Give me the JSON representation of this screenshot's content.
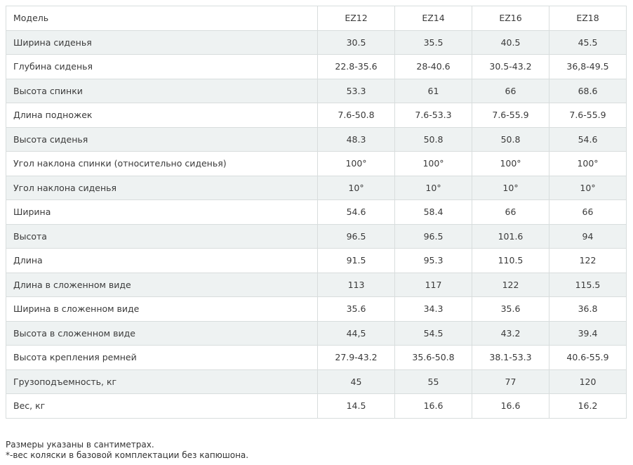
{
  "table": {
    "header": [
      "Модель",
      "EZ12",
      "EZ14",
      "EZ16",
      "EZ18"
    ],
    "rows": [
      [
        "Ширина сиденья",
        "30.5",
        "35.5",
        "40.5",
        "45.5"
      ],
      [
        "Глубина сиденья",
        "22.8-35.6",
        "28-40.6",
        "30.5-43.2",
        "36,8-49.5"
      ],
      [
        "Высота спинки",
        "53.3",
        "61",
        "66",
        "68.6"
      ],
      [
        "Длина подножек",
        "7.6-50.8",
        "7.6-53.3",
        "7.6-55.9",
        "7.6-55.9"
      ],
      [
        "Высота сиденья",
        "48.3",
        "50.8",
        "50.8",
        "54.6"
      ],
      [
        "Угол наклона спинки (относительно сиденья)",
        "100°",
        "100°",
        "100°",
        "100°"
      ],
      [
        "Угол наклона сиденья",
        "10°",
        "10°",
        "10°",
        "10°"
      ],
      [
        "Ширина",
        "54.6",
        "58.4",
        "66",
        "66"
      ],
      [
        "Высота",
        "96.5",
        "96.5",
        "101.6",
        "94"
      ],
      [
        "Длина",
        "91.5",
        "95.3",
        "110.5",
        "122"
      ],
      [
        "Длина в сложенном виде",
        "113",
        "117",
        "122",
        "115.5"
      ],
      [
        "Ширина в сложенном виде",
        "35.6",
        "34.3",
        "35.6",
        "36.8"
      ],
      [
        "Высота в сложенном виде",
        "44,5",
        "54.5",
        "43.2",
        "39.4"
      ],
      [
        "Высота крепления ремней",
        "27.9-43.2",
        "35.6-50.8",
        "38.1-53.3",
        "40.6-55.9"
      ],
      [
        "Грузоподъемность, кг",
        "45",
        "55",
        "77",
        "120"
      ],
      [
        "Вес, кг",
        "14.5",
        "16.6",
        "16.6",
        "16.2"
      ]
    ]
  },
  "notes": [
    "Размеры указаны в сантиметрах.",
    "*-вес коляски в базовой комплектации без капюшона."
  ]
}
